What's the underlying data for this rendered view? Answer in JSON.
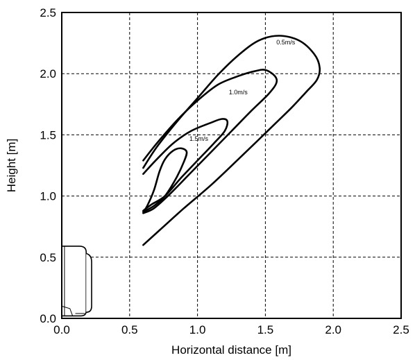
{
  "chart_data": {
    "type": "line",
    "xlabel": "Horizontal distance [m]",
    "ylabel": "Height [m]",
    "xlim": [
      0,
      2.5
    ],
    "ylim": [
      0,
      2.5
    ],
    "x_ticks": [
      "0.0",
      "0.5",
      "1.0",
      "1.5",
      "2.0",
      "2.5"
    ],
    "y_ticks": [
      "0.0",
      "0.5",
      "1.0",
      "1.5",
      "2.0",
      "2.5"
    ],
    "grid": true,
    "series": [
      {
        "name": "0.5m/s",
        "label_at": [
          1.65,
          2.24
        ],
        "points": [
          [
            0.6,
            1.23
          ],
          [
            0.7,
            1.4
          ],
          [
            0.85,
            1.61
          ],
          [
            1.0,
            1.8
          ],
          [
            1.15,
            1.99
          ],
          [
            1.3,
            2.15
          ],
          [
            1.45,
            2.27
          ],
          [
            1.6,
            2.31
          ],
          [
            1.75,
            2.27
          ],
          [
            1.86,
            2.16
          ],
          [
            1.9,
            2.05
          ],
          [
            1.88,
            1.95
          ],
          [
            1.8,
            1.85
          ],
          [
            1.7,
            1.73
          ],
          [
            1.58,
            1.6
          ],
          [
            1.45,
            1.46
          ],
          [
            1.3,
            1.3
          ],
          [
            1.1,
            1.09
          ],
          [
            0.9,
            0.9
          ],
          [
            0.72,
            0.72
          ],
          [
            0.6,
            0.6
          ]
        ]
      },
      {
        "name": "1.0m/s",
        "label_at": [
          1.3,
          1.83
        ],
        "points": [
          [
            0.6,
            1.29
          ],
          [
            0.7,
            1.43
          ],
          [
            0.85,
            1.62
          ],
          [
            1.0,
            1.78
          ],
          [
            1.15,
            1.91
          ],
          [
            1.3,
            1.98
          ],
          [
            1.42,
            2.02
          ],
          [
            1.5,
            2.03
          ],
          [
            1.57,
            1.98
          ],
          [
            1.58,
            1.92
          ],
          [
            1.52,
            1.83
          ],
          [
            1.4,
            1.7
          ],
          [
            1.25,
            1.53
          ],
          [
            1.1,
            1.36
          ],
          [
            0.95,
            1.19
          ],
          [
            0.8,
            1.02
          ],
          [
            0.68,
            0.9
          ],
          [
            0.6,
            0.86
          ]
        ]
      },
      {
        "name": "1.5m/s",
        "label_at": [
          1.01,
          1.45
        ],
        "points": [
          [
            0.6,
            1.18
          ],
          [
            0.7,
            1.3
          ],
          [
            0.82,
            1.43
          ],
          [
            0.95,
            1.53
          ],
          [
            1.1,
            1.6
          ],
          [
            1.18,
            1.63
          ],
          [
            1.22,
            1.61
          ],
          [
            1.2,
            1.53
          ],
          [
            1.12,
            1.43
          ],
          [
            1.0,
            1.29
          ],
          [
            0.88,
            1.15
          ],
          [
            0.76,
            1.0
          ],
          [
            0.66,
            0.93
          ],
          [
            0.6,
            0.88
          ]
        ]
      },
      {
        "name": "",
        "points": [
          [
            0.6,
            0.87
          ],
          [
            0.63,
            0.92
          ],
          [
            0.68,
            1.05
          ],
          [
            0.72,
            1.2
          ],
          [
            0.76,
            1.3
          ],
          [
            0.82,
            1.37
          ],
          [
            0.88,
            1.39
          ],
          [
            0.92,
            1.36
          ],
          [
            0.9,
            1.28
          ],
          [
            0.84,
            1.14
          ],
          [
            0.76,
            1.0
          ],
          [
            0.68,
            0.92
          ],
          [
            0.6,
            0.87
          ]
        ]
      }
    ]
  }
}
